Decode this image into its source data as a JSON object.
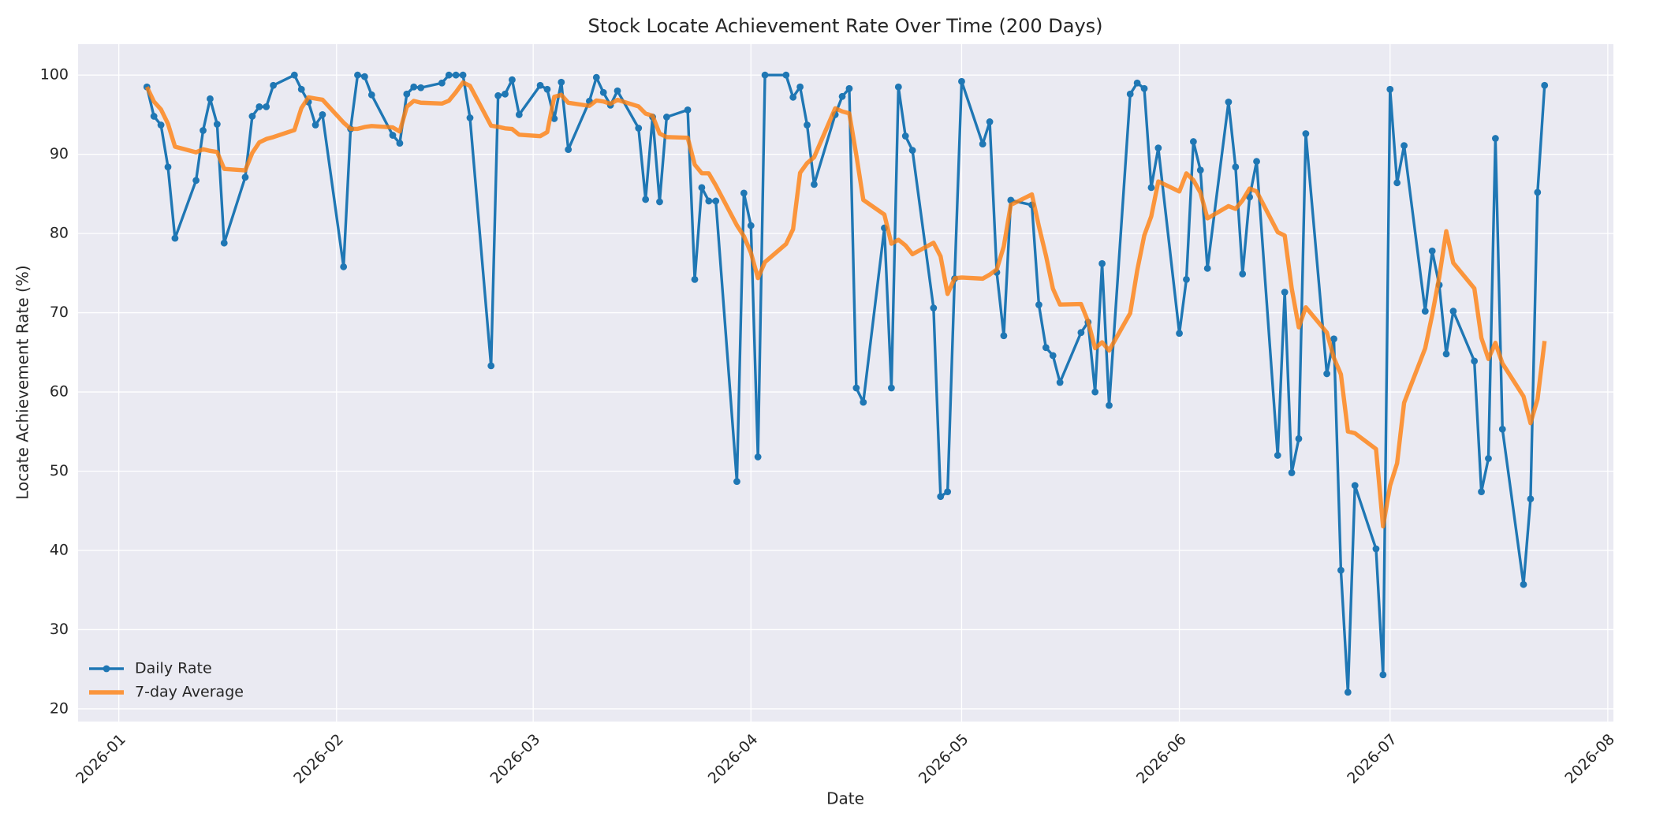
{
  "chart_data": {
    "type": "line",
    "title": "Stock Locate Achievement Rate Over Time (200 Days)",
    "xlabel": "Date",
    "ylabel": "Locate Achievement Rate (%)",
    "x": [
      4,
      5,
      6,
      7,
      8,
      11,
      12,
      13,
      14,
      15,
      18,
      19,
      20,
      21,
      22,
      25,
      26,
      27,
      28,
      29,
      32,
      33,
      34,
      35,
      36,
      39,
      40,
      41,
      42,
      43,
      46,
      47,
      48,
      49,
      50,
      53,
      54,
      55,
      56,
      57,
      60,
      61,
      62,
      63,
      64,
      67,
      68,
      69,
      70,
      71,
      74,
      75,
      76,
      77,
      78,
      81,
      82,
      83,
      84,
      85,
      88,
      89,
      90,
      91,
      92,
      95,
      96,
      97,
      98,
      99,
      102,
      103,
      104,
      105,
      106,
      109,
      110,
      111,
      112,
      113,
      116,
      117,
      118,
      119,
      120,
      123,
      124,
      125,
      126,
      127,
      130,
      131,
      132,
      133,
      134,
      137,
      138,
      139,
      140,
      141,
      144,
      145,
      146,
      147,
      148,
      151,
      152,
      153,
      154,
      155,
      158,
      159,
      160,
      161,
      162,
      165,
      166,
      167,
      168,
      169,
      172,
      173,
      174,
      175,
      176,
      179,
      180,
      181,
      182,
      183,
      186,
      187,
      188,
      189,
      190,
      193,
      194,
      195,
      196,
      197,
      200,
      201,
      202,
      203
    ],
    "series": [
      {
        "name": "Daily Rate",
        "color": "#1f77b4",
        "marker": true,
        "values": [
          98.5,
          94.8,
          93.7,
          88.4,
          79.4,
          86.7,
          93,
          97,
          93.8,
          78.8,
          87.1,
          94.8,
          96,
          96,
          98.7,
          100,
          98.2,
          96.6,
          93.7,
          95,
          75.8,
          93.2,
          100,
          99.8,
          97.5,
          92.4,
          91.4,
          97.6,
          98.5,
          98.4,
          99,
          100,
          100,
          100,
          94.6,
          63.3,
          97.4,
          97.6,
          99.4,
          95,
          98.7,
          98.2,
          94.5,
          99.1,
          90.6,
          96.7,
          99.7,
          97.8,
          96.2,
          98,
          93.3,
          84.3,
          94.7,
          84,
          94.7,
          95.6,
          74.2,
          85.8,
          84.1,
          84.1,
          48.7,
          85.1,
          81,
          51.8,
          100,
          100,
          97.2,
          98.5,
          93.7,
          86.2,
          95,
          97.3,
          98.3,
          60.5,
          58.7,
          80.7,
          60.5,
          98.5,
          92.3,
          90.5,
          70.6,
          46.8,
          47.4,
          74.3,
          99.2,
          91.3,
          94.1,
          75.1,
          67.1,
          84.2,
          83.6,
          71,
          65.6,
          64.6,
          61.2,
          67.5,
          68.8,
          60,
          76.2,
          58.3,
          97.6,
          99,
          98.3,
          85.8,
          90.8,
          67.4,
          74.2,
          91.6,
          88,
          75.6,
          96.6,
          88.4,
          74.9,
          84.6,
          89.1,
          52,
          72.6,
          49.8,
          54.1,
          92.6,
          62.3,
          66.7,
          37.5,
          22.1,
          48.2,
          40.2,
          24.3,
          98.2,
          86.4,
          91.1,
          70.2,
          77.8,
          73.5,
          64.8,
          70.2,
          63.9,
          47.4,
          51.6,
          92,
          55.3,
          35.7,
          46.5,
          85.2,
          98.7
        ]
      },
      {
        "name": "7-day Average",
        "color": "#ff7f0e",
        "marker": false,
        "values": [
          98.5,
          96.65,
          95.67,
          93.85,
          90.96,
          90.25,
          90.64,
          90.43,
          90.29,
          88.16,
          87.97,
          90.17,
          91.5,
          91.93,
          92.17,
          93.06,
          95.83,
          97.19,
          97.03,
          96.89,
          94,
          93.21,
          93.21,
          93.44,
          93.57,
          93.39,
          92.87,
          95.99,
          96.74,
          96.51,
          96.4,
          96.76,
          97.84,
          99.07,
          98.64,
          93.61,
          93.47,
          93.27,
          93.19,
          92.47,
          92.29,
          92.8,
          97.26,
          97.5,
          96.5,
          96.11,
          96.79,
          96.66,
          96.37,
          96.87,
          96.04,
          95.14,
          94.86,
          92.61,
          92.17,
          92.09,
          88.69,
          87.61,
          87.59,
          86.07,
          81.03,
          79.66,
          77.57,
          74.37,
          76.4,
          78.67,
          80.54,
          87.66,
          88.89,
          89.63,
          95.8,
          95.41,
          95.17,
          89.93,
          84.24,
          82.39,
          78.71,
          79.21,
          78.5,
          77.39,
          78.83,
          77.13,
          72.37,
          74.34,
          74.44,
          74.3,
          74.81,
          75.46,
          78.36,
          83.61,
          84.94,
          80.91,
          77.24,
          73.03,
          71.04,
          71.1,
          68.9,
          65.53,
          66.27,
          65.23,
          69.94,
          75.34,
          79.74,
          82.17,
          86.57,
          85.31,
          87.59,
          86.73,
          85.16,
          81.91,
          83.46,
          83.11,
          84.19,
          85.67,
          85.31,
          80.17,
          79.74,
          73.06,
          68.16,
          70.69,
          67.5,
          64.3,
          62.23,
          55.01,
          54.79,
          52.8,
          43.04,
          48.17,
          50.99,
          58.64,
          65.51,
          69.74,
          74.5,
          80.29,
          76.29,
          73.07,
          66.83,
          64.17,
          66.2,
          63.6,
          59.44,
          56.06,
          59.1,
          66.43
        ]
      }
    ],
    "xlim": [
      -5.8,
      212.8
    ],
    "xticks": [
      {
        "value": 0,
        "label": "2026-01"
      },
      {
        "value": 31,
        "label": "2026-02"
      },
      {
        "value": 59,
        "label": "2026-03"
      },
      {
        "value": 90,
        "label": "2026-04"
      },
      {
        "value": 120,
        "label": "2026-05"
      },
      {
        "value": 151,
        "label": "2026-06"
      },
      {
        "value": 181,
        "label": "2026-07"
      },
      {
        "value": 212,
        "label": "2026-08"
      }
    ],
    "ylim": [
      18.4,
      103.9
    ],
    "yticks": [
      20,
      30,
      40,
      50,
      60,
      70,
      80,
      90,
      100
    ],
    "grid": true,
    "legend": "lower left"
  }
}
